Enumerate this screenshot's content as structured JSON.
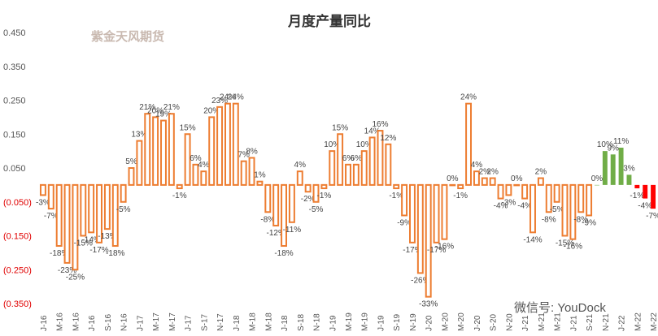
{
  "chart_data": {
    "type": "bar",
    "title": "月度产量同比",
    "watermarks": [
      "紫金天风期货",
      "微信号: YouDock"
    ],
    "categories": [
      "J-16",
      null,
      "M-16",
      null,
      "M-16",
      null,
      "J-16",
      null,
      "S-16",
      null,
      "N-16",
      null,
      "J-17",
      null,
      "M-17",
      null,
      "M-17",
      null,
      "J-17",
      null,
      "S-17",
      null,
      "N-17",
      null,
      "J-18",
      null,
      "M-18",
      null,
      "M-18",
      null,
      "J-18",
      null,
      "S-18",
      null,
      "N-18",
      null,
      "J-19",
      null,
      "M-19",
      null,
      "M-19",
      null,
      "J-19",
      null,
      "S-19",
      null,
      "N-19",
      null,
      "J-20",
      null,
      "M-20",
      null,
      "M-20",
      null,
      "J-20",
      null,
      "S-20",
      null,
      "N-20",
      null,
      "J-21",
      null,
      "M-21",
      null,
      "M-21",
      null,
      "J-21",
      null,
      "S-21",
      null,
      "N-21",
      null,
      "J-22",
      null,
      "M-22",
      null,
      "M-22"
    ],
    "values": [
      -0.03,
      -0.07,
      -0.18,
      -0.23,
      -0.25,
      -0.15,
      -0.14,
      -0.17,
      -0.13,
      -0.18,
      -0.05,
      0.05,
      0.13,
      0.21,
      0.2,
      0.19,
      0.21,
      -0.01,
      0.15,
      0.06,
      0.04,
      0.2,
      0.23,
      0.24,
      0.24,
      0.07,
      0.08,
      0.01,
      -0.08,
      -0.12,
      -0.18,
      -0.11,
      0.04,
      -0.02,
      -0.05,
      -0.01,
      0.1,
      0.15,
      0.06,
      0.06,
      0.1,
      0.14,
      0.16,
      0.12,
      -0.01,
      -0.09,
      -0.17,
      -0.26,
      -0.33,
      -0.17,
      -0.16,
      0.0,
      -0.01,
      0.24,
      0.04,
      0.02,
      0.02,
      -0.04,
      -0.03,
      0.0,
      -0.04,
      -0.14,
      0.02,
      -0.08,
      -0.05,
      -0.15,
      -0.16,
      -0.08,
      -0.09,
      0.0,
      0.1,
      0.09,
      0.11,
      0.03,
      -0.01,
      -0.04,
      -0.07
    ],
    "value_labels": [
      "-3%",
      "-7%",
      "-18%",
      "-23%",
      "-25%",
      "-15%",
      "-14%",
      "-17%",
      "-13%",
      "-18%",
      "-5%",
      "5%",
      "13%",
      "21%",
      "20%",
      "19%",
      "21%",
      "-1%",
      "15%",
      "6%",
      "4%",
      "20%",
      "23%",
      "24%",
      "24%",
      "7%",
      "8%",
      "1%",
      "-8%",
      "-12%",
      "-18%",
      "-11%",
      "4%",
      "-2%",
      "-5%",
      "-1%",
      "10%",
      "15%",
      "6%",
      "6%",
      "10%",
      "14%",
      "16%",
      "12%",
      "-1%",
      "-9%",
      "-17%",
      "-26%",
      "-33%",
      "-17%",
      "-16%",
      "0%",
      "-1%",
      "24%",
      "4%",
      "2%",
      "2%",
      "-4%",
      "-3%",
      "0%",
      "-4%",
      "-14%",
      "2%",
      "-8%",
      "-5%",
      "-15%",
      "-16%",
      "-8%",
      "-9%",
      "0%",
      "10%",
      "9%",
      "11%",
      "3%",
      "-1%",
      "-4%",
      "-7%"
    ],
    "colors": [
      "#ed7d31",
      "#ed7d31",
      "#ed7d31",
      "#ed7d31",
      "#ed7d31",
      "#ed7d31",
      "#ed7d31",
      "#ed7d31",
      "#ed7d31",
      "#ed7d31",
      "#ed7d31",
      "#ed7d31",
      "#ed7d31",
      "#ed7d31",
      "#ed7d31",
      "#ed7d31",
      "#ed7d31",
      "#ed7d31",
      "#ed7d31",
      "#ed7d31",
      "#ed7d31",
      "#ed7d31",
      "#ed7d31",
      "#ed7d31",
      "#ed7d31",
      "#ed7d31",
      "#ed7d31",
      "#ed7d31",
      "#ed7d31",
      "#ed7d31",
      "#ed7d31",
      "#ed7d31",
      "#ed7d31",
      "#ed7d31",
      "#ed7d31",
      "#ed7d31",
      "#ed7d31",
      "#ed7d31",
      "#ed7d31",
      "#ed7d31",
      "#ed7d31",
      "#ed7d31",
      "#ed7d31",
      "#ed7d31",
      "#ed7d31",
      "#ed7d31",
      "#ed7d31",
      "#ed7d31",
      "#ed7d31",
      "#ed7d31",
      "#ed7d31",
      "#ed7d31",
      "#ed7d31",
      "#ed7d31",
      "#ed7d31",
      "#ed7d31",
      "#ed7d31",
      "#ed7d31",
      "#ed7d31",
      "#ed7d31",
      "#ed7d31",
      "#ed7d31",
      "#ed7d31",
      "#ed7d31",
      "#ed7d31",
      "#ed7d31",
      "#ed7d31",
      "#ed7d31",
      "#ed7d31",
      "#70ad47",
      "#70ad47",
      "#70ad47",
      "#70ad47",
      "#70ad47",
      "#ff0000",
      "#ff0000",
      "#ff0000"
    ],
    "filled": [
      "#70ad47",
      "#ff0000"
    ],
    "ylim": [
      -0.35,
      0.45
    ],
    "yticks": [
      {
        "value": 0.45,
        "label": "0.450"
      },
      {
        "value": 0.35,
        "label": "0.350"
      },
      {
        "value": 0.25,
        "label": "0.250"
      },
      {
        "value": 0.15,
        "label": "0.150"
      },
      {
        "value": 0.05,
        "label": "0.050"
      },
      {
        "value": -0.05,
        "label": "(0.050)"
      },
      {
        "value": -0.15,
        "label": "(0.150)"
      },
      {
        "value": -0.25,
        "label": "(0.250)"
      },
      {
        "value": -0.35,
        "label": "(0.350)"
      }
    ],
    "grid": false
  }
}
